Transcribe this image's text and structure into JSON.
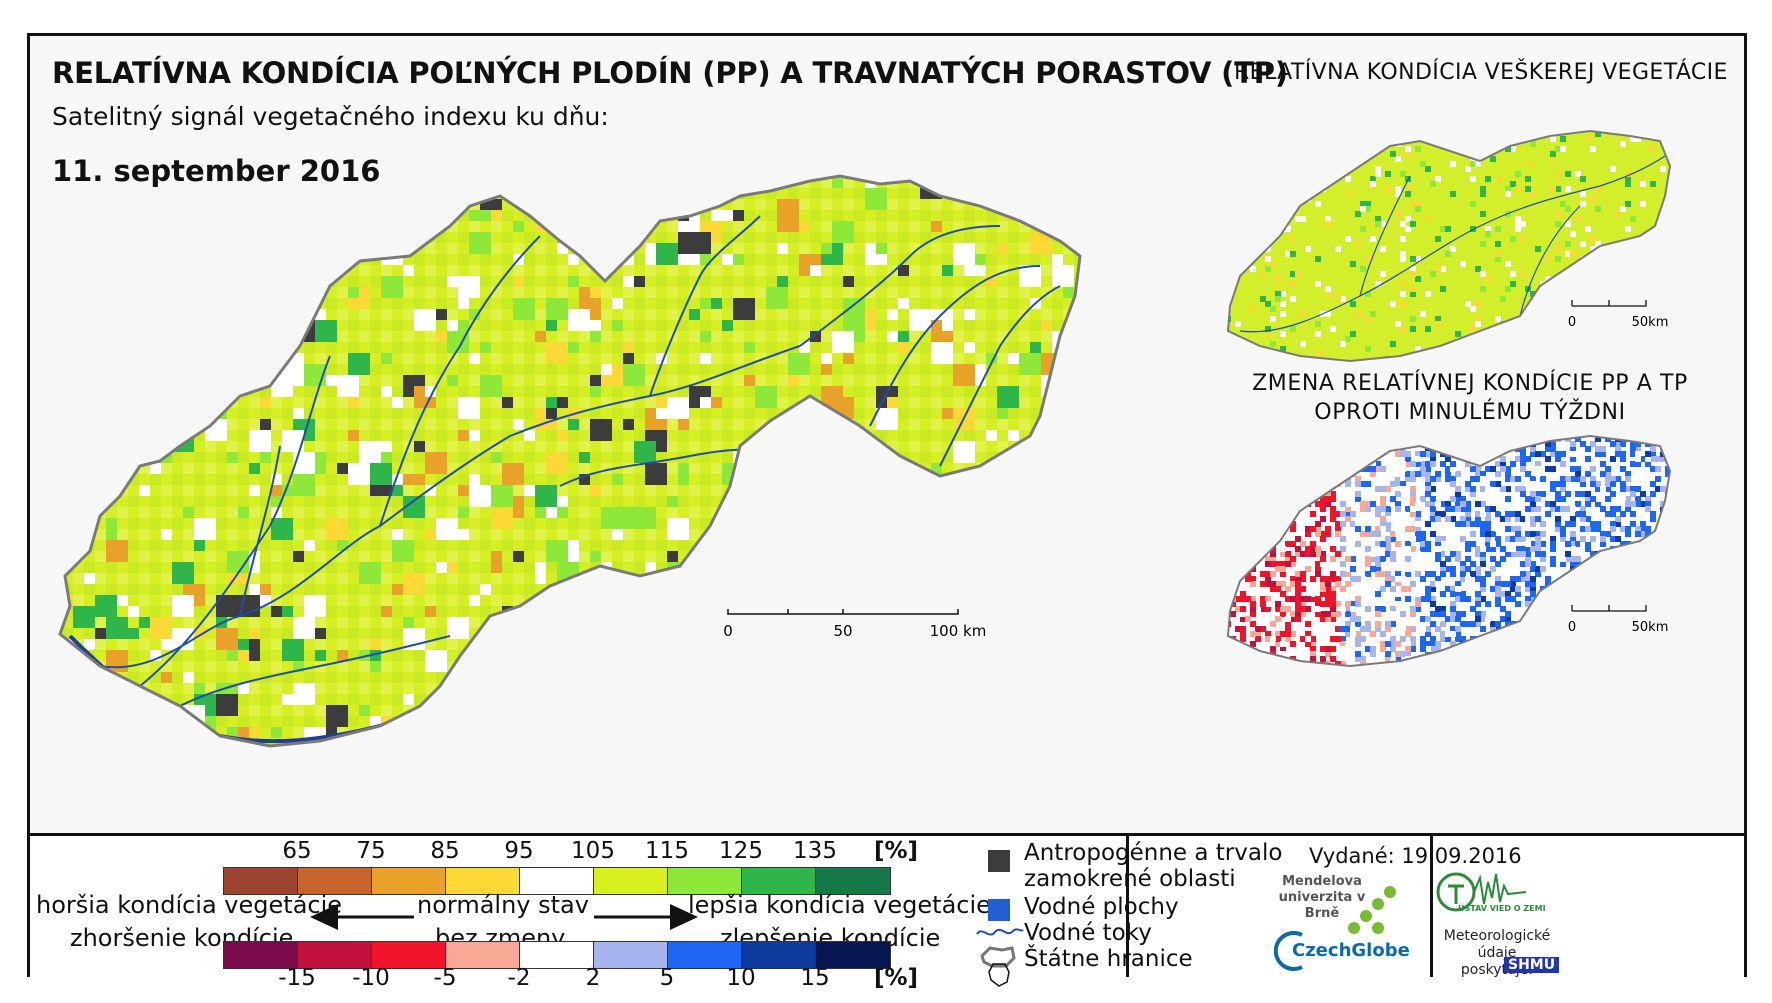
{
  "header": {
    "title": "RELATÍVNA KONDÍCIA POĽNÝCH PLODÍN (PP) A TRAVNATÝCH PORASTOV (TP)",
    "subtitle": "Satelitný signál vegetačného indexu ku dňu:",
    "date": "11. september 2016"
  },
  "right_panel": {
    "top_title": "RELATÍVNA KONDÍCIA VEŠKEREJ VEGETÁCIE",
    "bottom_title_line1": "ZMENA RELATÍVNEJ KONDÍCIE PP A TP",
    "bottom_title_line2": "OPROTI MINULÉMU TÝŽDNI",
    "scale_top": [
      "0",
      "50km"
    ],
    "scale_bottom": [
      "0",
      "50km"
    ]
  },
  "main_map": {
    "scale_labels": [
      "0",
      "50",
      "100 km"
    ]
  },
  "legend": {
    "condition_ticks": [
      "65",
      "75",
      "85",
      "95",
      "105",
      "115",
      "125",
      "135"
    ],
    "condition_unit": "[%]",
    "condition_colors": [
      "#9c4530",
      "#c8642e",
      "#e8a22a",
      "#fcd935",
      "#ffffff",
      "#d8f01e",
      "#8ee83a",
      "#2fb64a",
      "#17794a"
    ],
    "change_ticks": [
      "-15",
      "-10",
      "-5",
      "-2",
      "2",
      "5",
      "10",
      "15"
    ],
    "change_unit": "[%]",
    "change_colors": [
      "#7b0a4b",
      "#c0123c",
      "#f0142a",
      "#f7a896",
      "#ffffff",
      "#a8b4ee",
      "#1f66f2",
      "#0d3c9e",
      "#07164e"
    ],
    "worse_line1": "horšia kondícia vegetácie",
    "worse_line2": "zhoršenie kondície",
    "normal_line1": "normálny stav",
    "normal_line2": "bez zmeny",
    "better_line1": "lepšia kondícia vegetácie",
    "better_line2": "zlepšenie kondície",
    "symbols": {
      "anthropogenic_line1": "Antropogénne a trvalo",
      "anthropogenic_line2": "zamokrené oblasti",
      "water_areas": "Vodné plochy",
      "water_streams": "Vodné toky",
      "state_borders": "Štátne hranice",
      "region_borders": "Hranice krajov"
    },
    "issued": "Vydané: 19.09.2016",
    "logos": {
      "mendel": "Mendelova univerzita v Brně",
      "czechglobe": "CzechGlobe",
      "ustav": "ÚSTAV VIED O ZEMI",
      "meteo": "Meteorologické údaje poskytuje:",
      "shmu": "SHMÚ"
    }
  }
}
